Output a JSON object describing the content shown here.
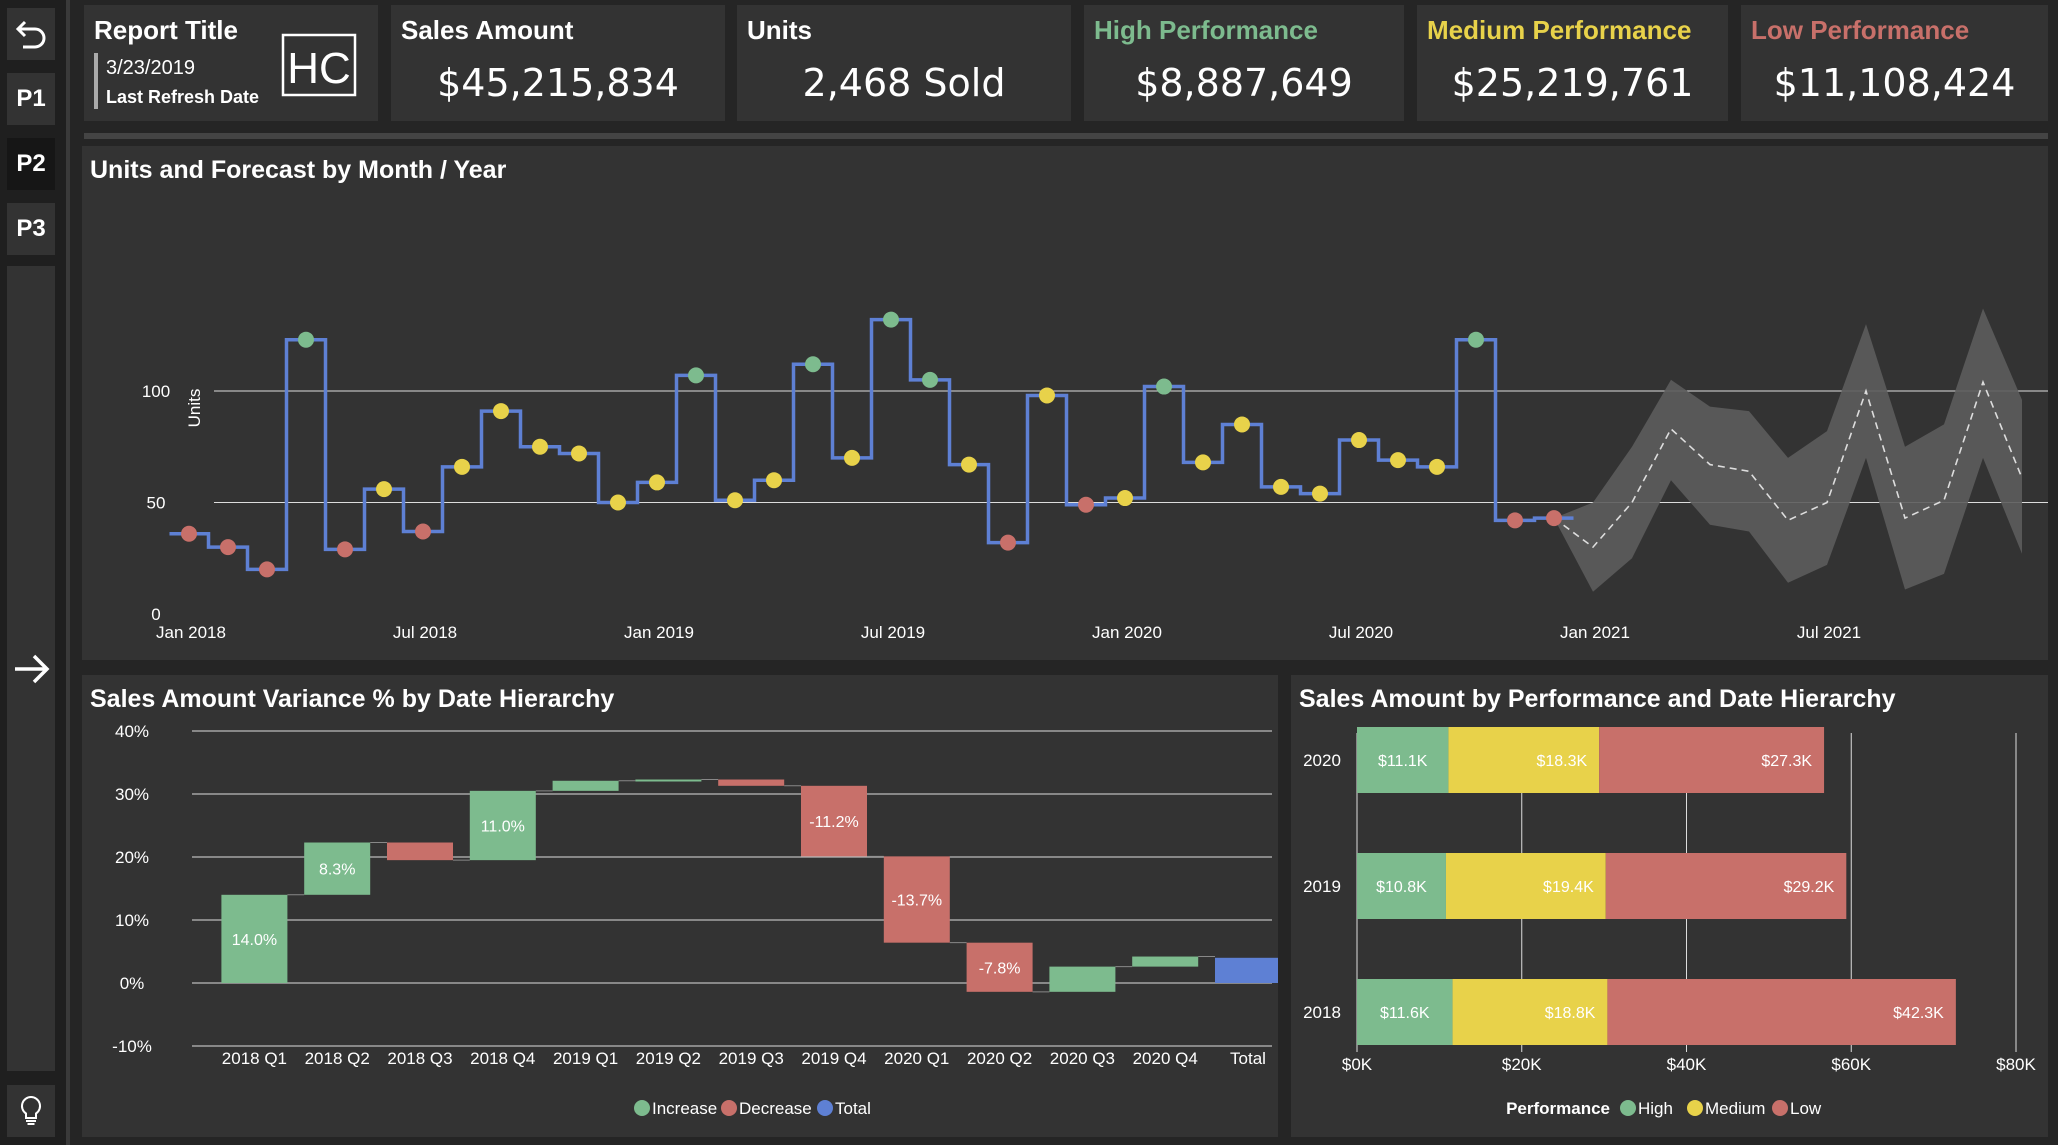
{
  "nav": {
    "buttons": [
      "P1",
      "P2",
      "P3"
    ]
  },
  "header": {
    "report_title": "Report Title",
    "refresh_date": "3/23/2019",
    "refresh_label": "Last Refresh Date",
    "logo_text": "HC"
  },
  "kpis": [
    {
      "label": "Sales Amount",
      "value": "$45,215,834",
      "color": "#ffffff"
    },
    {
      "label": "Units",
      "value": "2,468 Sold",
      "color": "#ffffff"
    },
    {
      "label": "High Performance",
      "value": "$8,887,649",
      "color": "#7dbb8e"
    },
    {
      "label": "Medium Performance",
      "value": "$25,219,761",
      "color": "#e8d24a"
    },
    {
      "label": "Low Performance",
      "value": "$11,108,424",
      "color": "#c8706a"
    }
  ],
  "colors": {
    "high": "#7dbb8e",
    "medium": "#e8d24a",
    "low": "#c8706a",
    "line": "#5e80d4",
    "total": "#5e80d4"
  },
  "chart_data": [
    {
      "type": "line",
      "title": "Units and Forecast by Month / Year",
      "ylabel": "Units",
      "ylim": [
        0,
        140
      ],
      "yticks": [
        0,
        50,
        100
      ],
      "xticks": [
        "Jan 2018",
        "Jul 2018",
        "Jan 2019",
        "Jul 2019",
        "Jan 2020",
        "Jul 2020",
        "Jan 2021",
        "Jul 2021"
      ],
      "series": [
        {
          "x": [
            "2018-01",
            "2018-02",
            "2018-03",
            "2018-04",
            "2018-05",
            "2018-06",
            "2018-07",
            "2018-08",
            "2018-09",
            "2018-10",
            "2018-11",
            "2018-12",
            "2019-01",
            "2019-02",
            "2019-03",
            "2019-04",
            "2019-05",
            "2019-06",
            "2019-07",
            "2019-08",
            "2019-09",
            "2019-10",
            "2019-11",
            "2019-12",
            "2020-01",
            "2020-02",
            "2020-03",
            "2020-04",
            "2020-05",
            "2020-06",
            "2020-07",
            "2020-08",
            "2020-09",
            "2020-10",
            "2020-11",
            "2020-12"
          ],
          "values": [
            36,
            30,
            20,
            123,
            29,
            56,
            37,
            66,
            91,
            75,
            72,
            50,
            59,
            107,
            51,
            60,
            112,
            70,
            132,
            105,
            67,
            32,
            98,
            49,
            52,
            102,
            68,
            85,
            57,
            54,
            78,
            69,
            66,
            123,
            42,
            43
          ],
          "perf": [
            "low",
            "low",
            "low",
            "high",
            "low",
            "medium",
            "low",
            "medium",
            "medium",
            "medium",
            "medium",
            "medium",
            "medium",
            "high",
            "medium",
            "medium",
            "high",
            "medium",
            "high",
            "high",
            "medium",
            "low",
            "medium",
            "low",
            "medium",
            "high",
            "medium",
            "medium",
            "medium",
            "medium",
            "medium",
            "medium",
            "medium",
            "high",
            "low",
            "low"
          ]
        }
      ],
      "forecast": {
        "x": [
          "2020-12",
          "2021-01",
          "2021-02",
          "2021-03",
          "2021-04",
          "2021-05",
          "2021-06",
          "2021-07",
          "2021-08",
          "2021-09",
          "2021-10",
          "2021-11",
          "2021-12"
        ],
        "values": [
          43,
          30,
          50,
          83,
          67,
          64,
          42,
          50,
          100,
          43,
          51,
          104,
          61
        ],
        "upper": [
          43,
          50,
          75,
          105,
          93,
          91,
          70,
          82,
          130,
          75,
          85,
          137,
          96
        ],
        "lower": [
          43,
          10,
          25,
          60,
          40,
          37,
          14,
          22,
          70,
          11,
          18,
          70,
          27
        ]
      }
    },
    {
      "type": "bar",
      "subtype": "waterfall",
      "title": "Sales Amount Variance % by Date Hierarchy",
      "categories": [
        "2018 Q1",
        "2018 Q2",
        "2018 Q3",
        "2018 Q4",
        "2019 Q1",
        "2019 Q2",
        "2019 Q3",
        "2019 Q4",
        "2020 Q1",
        "2020 Q2",
        "2020 Q3",
        "2020 Q4",
        "Total"
      ],
      "values": [
        14.0,
        8.3,
        -2.8,
        11.0,
        1.6,
        0.2,
        -1.0,
        -11.2,
        -13.7,
        -7.8,
        4.0,
        1.6,
        4.0
      ],
      "labels": [
        "14.0%",
        "8.3%",
        "",
        "11.0%",
        "",
        "",
        "",
        "-11.2%",
        "-13.7%",
        "-7.8%",
        "",
        "",
        ""
      ],
      "ylim": [
        -10,
        40
      ],
      "yticks": [
        "-10%",
        "0%",
        "10%",
        "20%",
        "30%",
        "40%"
      ],
      "legend": [
        "Increase",
        "Decrease",
        "Total"
      ],
      "legend_position": "bottom"
    },
    {
      "type": "bar",
      "subtype": "stacked-horizontal",
      "title": "Sales Amount by Performance and Date Hierarchy",
      "categories": [
        "2020",
        "2019",
        "2018"
      ],
      "series": [
        {
          "name": "High",
          "values": [
            11.1,
            10.8,
            11.6
          ],
          "labels": [
            "$11.1K",
            "$10.8K",
            "$11.6K"
          ]
        },
        {
          "name": "Medium",
          "values": [
            18.3,
            19.4,
            18.8
          ],
          "labels": [
            "$18.3K",
            "$19.4K",
            "$18.8K"
          ]
        },
        {
          "name": "Low",
          "values": [
            27.3,
            29.2,
            42.3
          ],
          "labels": [
            "$27.3K",
            "$29.2K",
            "$42.3K"
          ]
        }
      ],
      "xlim": [
        0,
        80
      ],
      "xticks": [
        "$0K",
        "$20K",
        "$40K",
        "$60K",
        "$80K"
      ],
      "legend_title": "Performance",
      "legend": [
        "High",
        "Medium",
        "Low"
      ],
      "legend_position": "bottom"
    }
  ]
}
